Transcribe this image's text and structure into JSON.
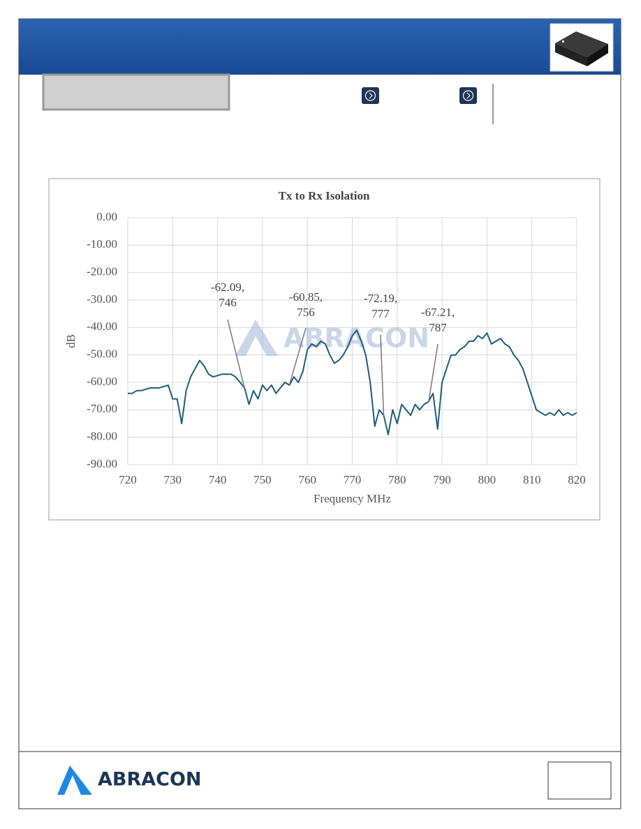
{
  "chart_data": {
    "type": "line",
    "title": "Tx to Rx Isolation",
    "x_label": "Frequency MHz",
    "y_label": "dB",
    "x": [
      720,
      721,
      722,
      723,
      724,
      725,
      726,
      727,
      728,
      729,
      730,
      731,
      732,
      733,
      734,
      735,
      736,
      737,
      738,
      739,
      740,
      741,
      742,
      743,
      744,
      745,
      746,
      747,
      748,
      749,
      750,
      751,
      752,
      753,
      754,
      755,
      756,
      757,
      758,
      759,
      760,
      761,
      762,
      763,
      764,
      765,
      766,
      767,
      768,
      769,
      770,
      771,
      772,
      773,
      774,
      775,
      776,
      777,
      778,
      779,
      780,
      781,
      782,
      783,
      784,
      785,
      786,
      787,
      788,
      789,
      790,
      791,
      792,
      793,
      794,
      795,
      796,
      797,
      798,
      799,
      800,
      801,
      802,
      803,
      804,
      805,
      806,
      807,
      808,
      809,
      810,
      811,
      812,
      813,
      814,
      815,
      816,
      817,
      818,
      819,
      820
    ],
    "series": [
      {
        "name": "Isolation",
        "color": "#1b5d7c",
        "values": [
          -64,
          -64,
          -63,
          -63,
          -62.5,
          -62,
          -62,
          -62,
          -61.5,
          -61,
          -66,
          -66,
          -75,
          -63,
          -58,
          -55,
          -52,
          -54,
          -57,
          -58,
          -57.5,
          -57,
          -57,
          -57,
          -58,
          -60,
          -62,
          -68,
          -63,
          -66,
          -61,
          -63,
          -61,
          -64,
          -62,
          -60,
          -61,
          -58,
          -60,
          -56,
          -48,
          -46,
          -47,
          -45,
          -46,
          -50,
          -53,
          -52,
          -50,
          -47,
          -43,
          -41,
          -45,
          -50,
          -60,
          -76,
          -70,
          -72,
          -79,
          -70,
          -75,
          -68,
          -70,
          -72,
          -68,
          -70,
          -68,
          -67,
          -64,
          -77,
          -60,
          -55,
          -50,
          -50,
          -48,
          -47,
          -45,
          -45,
          -43,
          -44,
          -42,
          -46,
          -45,
          -44,
          -46,
          -47,
          -50,
          -52,
          -55,
          -60,
          -65,
          -70,
          -71,
          -72,
          -71,
          -72,
          -70,
          -72,
          -71,
          -72,
          -71
        ]
      }
    ],
    "xlim": [
      720,
      820
    ],
    "xticks": [
      720,
      730,
      740,
      750,
      760,
      770,
      780,
      790,
      800,
      810,
      820
    ],
    "ylim": [
      -90,
      0
    ],
    "yticks": [
      {
        "value": 0,
        "label": "0.00"
      },
      {
        "value": -10,
        "label": "-10.00"
      },
      {
        "value": -20,
        "label": "-20.00"
      },
      {
        "value": -30,
        "label": "-30.00"
      },
      {
        "value": -40,
        "label": "-40.00"
      },
      {
        "value": -50,
        "label": "-50.00"
      },
      {
        "value": -60,
        "label": "-60.00"
      },
      {
        "value": -70,
        "label": "-70.00"
      },
      {
        "value": -80,
        "label": "-80.00"
      },
      {
        "value": -90,
        "label": "-90.00"
      }
    ],
    "grid": true,
    "watermark": "ABRACON",
    "annotations": [
      {
        "x": 746,
        "y": -62.09,
        "text": [
          "-62.09,",
          "746"
        ]
      },
      {
        "x": 756,
        "y": -60.85,
        "text": [
          "-60.85,",
          "756"
        ]
      },
      {
        "x": 777,
        "y": -72.19,
        "text": [
          "-72.19,",
          "777"
        ]
      },
      {
        "x": 787,
        "y": -67.21,
        "text": [
          "-67.21,",
          "787"
        ]
      }
    ]
  },
  "footer": {
    "logo_text": "ABRACON"
  }
}
